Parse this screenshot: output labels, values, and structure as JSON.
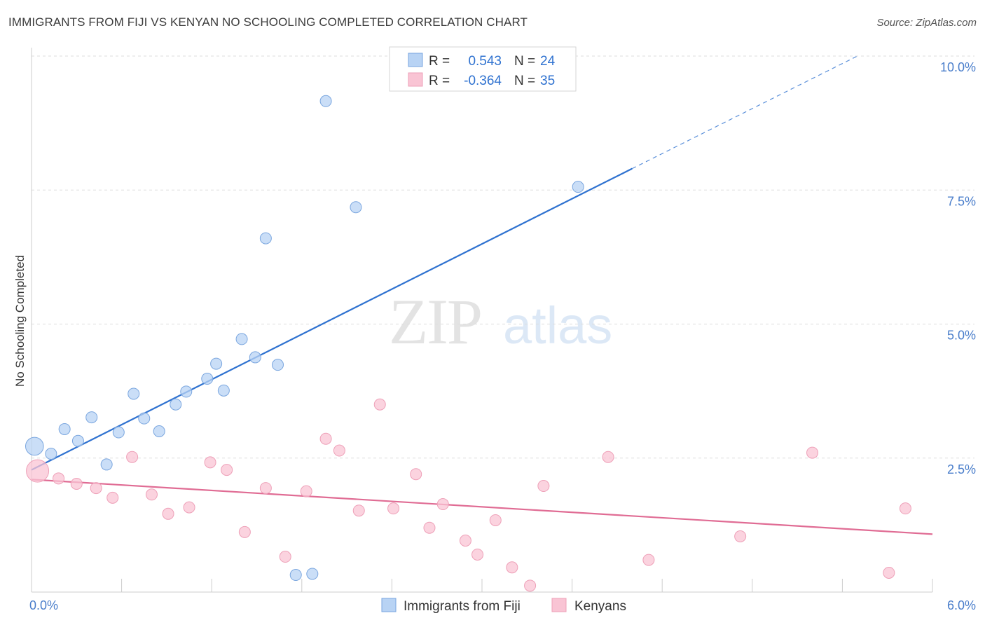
{
  "header": {
    "title": "IMMIGRANTS FROM FIJI VS KENYAN NO SCHOOLING COMPLETED CORRELATION CHART",
    "source": "Source: ZipAtlas.com"
  },
  "watermark": {
    "zip": "ZIP",
    "atlas": "atlas"
  },
  "legend": {
    "rows": [
      {
        "r_label": "R =",
        "r_value": "0.543",
        "n_label": "N =",
        "n_value": "24"
      },
      {
        "r_label": "R =",
        "r_value": "-0.364",
        "n_label": "N =",
        "n_value": "35"
      }
    ]
  },
  "bottom_legend": [
    "Immigrants from Fiji",
    "Kenyans"
  ],
  "colors": {
    "fiji_fill": "#b8d3f4",
    "fiji_stroke": "#7aa6df",
    "fiji_line": "#2f72d0",
    "kenya_fill": "#f9c4d4",
    "kenya_stroke": "#eea0b8",
    "kenya_line": "#e06c94",
    "tick_text": "#4a7ecb",
    "grid": "#dddddd"
  },
  "chart_data": {
    "type": "scatter",
    "title": "IMMIGRANTS FROM FIJI VS KENYAN NO SCHOOLING COMPLETED CORRELATION CHART",
    "xlabel": "",
    "ylabel": "No Schooling Completed",
    "xlim": [
      0,
      6.0
    ],
    "ylim": [
      0,
      10.0
    ],
    "x_tick_labels": [
      "0.0%",
      "6.0%"
    ],
    "y_ticks": [
      2.5,
      5.0,
      7.5,
      10.0
    ],
    "y_tick_labels": [
      "2.5%",
      "5.0%",
      "7.5%",
      "10.0%"
    ],
    "grid": "horizontal dashed",
    "legend_position": "top-center",
    "series": [
      {
        "name": "Immigrants from Fiji",
        "r": 0.543,
        "n": 24,
        "trend": {
          "x0": 0.0,
          "y0": 2.28,
          "x1": 4.0,
          "y1": 7.9,
          "dashed_to_x": 5.5,
          "dashed_to_y": 10.0
        },
        "points": [
          [
            0.02,
            2.72,
            1.6
          ],
          [
            0.13,
            2.58,
            1
          ],
          [
            0.22,
            3.04,
            1
          ],
          [
            0.31,
            2.82,
            1
          ],
          [
            0.4,
            3.26,
            1
          ],
          [
            0.5,
            2.38,
            1
          ],
          [
            0.58,
            2.98,
            1
          ],
          [
            0.68,
            3.7,
            1
          ],
          [
            0.75,
            3.24,
            1
          ],
          [
            0.85,
            3.0,
            1
          ],
          [
            0.96,
            3.5,
            1
          ],
          [
            1.03,
            3.74,
            1
          ],
          [
            1.17,
            3.98,
            1
          ],
          [
            1.23,
            4.26,
            1
          ],
          [
            1.28,
            3.76,
            1
          ],
          [
            1.4,
            4.72,
            1
          ],
          [
            1.49,
            4.38,
            1
          ],
          [
            1.56,
            6.6,
            1
          ],
          [
            1.64,
            4.24,
            1
          ],
          [
            1.76,
            0.32,
            1
          ],
          [
            1.87,
            0.34,
            1
          ],
          [
            1.96,
            9.16,
            1
          ],
          [
            2.16,
            7.18,
            1
          ],
          [
            3.64,
            7.56,
            1
          ]
        ]
      },
      {
        "name": "Kenyans",
        "r": -0.364,
        "n": 35,
        "trend": {
          "x0": 0.0,
          "y0": 2.1,
          "x1": 6.0,
          "y1": 1.08
        },
        "points": [
          [
            0.04,
            2.26,
            2
          ],
          [
            0.18,
            2.12,
            1
          ],
          [
            0.3,
            2.02,
            1
          ],
          [
            0.43,
            1.94,
            1
          ],
          [
            0.54,
            1.76,
            1
          ],
          [
            0.67,
            2.52,
            1
          ],
          [
            0.8,
            1.82,
            1
          ],
          [
            0.91,
            1.46,
            1
          ],
          [
            1.05,
            1.58,
            1
          ],
          [
            1.19,
            2.42,
            1
          ],
          [
            1.3,
            2.28,
            1
          ],
          [
            1.42,
            1.12,
            1
          ],
          [
            1.56,
            1.94,
            1
          ],
          [
            1.69,
            0.66,
            1
          ],
          [
            1.83,
            1.88,
            1
          ],
          [
            1.96,
            2.86,
            1
          ],
          [
            2.05,
            2.64,
            1
          ],
          [
            2.18,
            1.52,
            1
          ],
          [
            2.32,
            3.5,
            1
          ],
          [
            2.41,
            1.56,
            1
          ],
          [
            2.56,
            2.2,
            1
          ],
          [
            2.65,
            1.2,
            1
          ],
          [
            2.74,
            1.64,
            1
          ],
          [
            2.89,
            0.96,
            1
          ],
          [
            2.97,
            0.7,
            1
          ],
          [
            3.09,
            1.34,
            1
          ],
          [
            3.2,
            0.46,
            1
          ],
          [
            3.32,
            0.12,
            1
          ],
          [
            3.41,
            1.98,
            1
          ],
          [
            3.84,
            2.52,
            1
          ],
          [
            4.11,
            0.6,
            1
          ],
          [
            4.72,
            1.04,
            1
          ],
          [
            5.2,
            2.6,
            1
          ],
          [
            5.71,
            0.36,
            1
          ],
          [
            5.82,
            1.56,
            1
          ]
        ]
      }
    ]
  }
}
